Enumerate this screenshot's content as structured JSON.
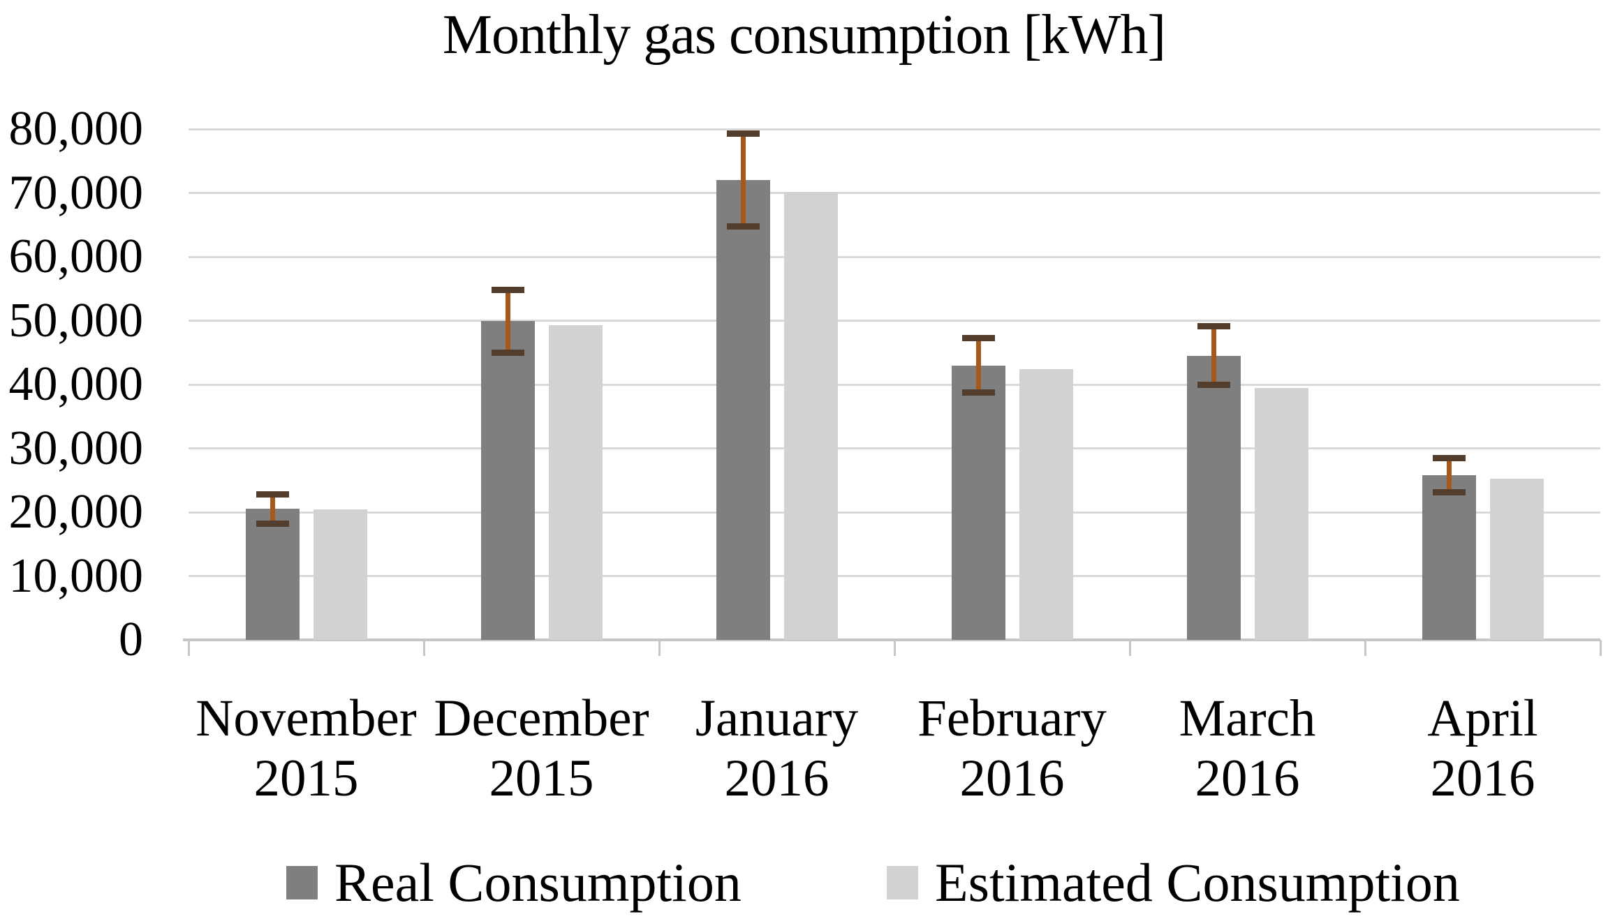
{
  "chart_data": {
    "type": "bar",
    "title": "Monthly gas consumption [kWh]",
    "categories": [
      "November 2015",
      "December 2015",
      "January 2016",
      "February 2016",
      "March 2016",
      "April 2016"
    ],
    "series": [
      {
        "name": "Real Consumption",
        "color": "#7f7f7f",
        "values": [
          20500,
          49900,
          72000,
          43000,
          44500,
          25800
        ],
        "error_plus": [
          2300,
          4900,
          7300,
          4300,
          4600,
          2700
        ],
        "error_minus": [
          2300,
          4900,
          7300,
          4300,
          4600,
          2700
        ]
      },
      {
        "name": "Estimated Consumption",
        "color": "#d3d1d1",
        "values": [
          20400,
          49300,
          70200,
          42400,
          39500,
          25300
        ]
      }
    ],
    "xlabel": "",
    "ylabel": "",
    "ylim": [
      0,
      80000
    ],
    "ytick_step": 10000,
    "ytick_labels": [
      "0",
      "10,000",
      "20,000",
      "30,000",
      "40,000",
      "50,000",
      "60,000",
      "70,000",
      "80,000"
    ],
    "grid": true,
    "gridline_color": "#d9d9d9",
    "axis_color": "#c6c6c6",
    "error_bar_color": "#a55a1d",
    "error_cap_color": "#533e2d",
    "legend_position": "bottom",
    "background_color": "#ffffff",
    "text_color": "#000000"
  }
}
